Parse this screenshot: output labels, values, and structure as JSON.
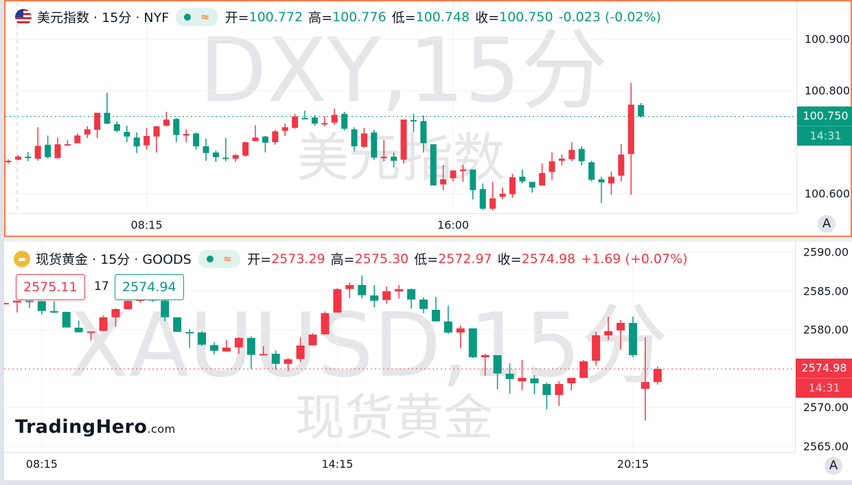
{
  "colors": {
    "up": "#f23645",
    "down": "#089981",
    "active_border": "#ff7a45"
  },
  "panes": [
    {
      "symbol_title": "美元指数 · 15分 · NYF",
      "icon": "us-flag-icon",
      "watermark_main": "DXY,15分",
      "watermark_sub": "美元指数",
      "ohlc": {
        "open_label": "开=",
        "open": "100.772",
        "high_label": "高=",
        "high": "100.776",
        "low_label": "低=",
        "low": "100.748",
        "close_label": "收=",
        "close": "100.750",
        "change": "-0.023 (-0.02%)",
        "color": "#089981"
      },
      "last_price": "100.750",
      "countdown": "14:31",
      "price_ticks": [
        "100.900",
        "100.800",
        "100.600"
      ],
      "time_labels": [
        {
          "label": "08:15",
          "index": 14
        },
        {
          "label": "16:00",
          "index": 45
        }
      ],
      "scale_button": "A",
      "chart_data": {
        "type": "candlestick",
        "interval": "15分",
        "ylim": [
          100.555,
          100.976
        ],
        "up_color": "#f23645",
        "down_color": "#089981",
        "ohlc": [
          [
            100.662,
            100.667,
            100.658,
            100.664
          ],
          [
            100.666,
            100.675,
            100.665,
            100.672
          ],
          [
            100.672,
            100.681,
            100.663,
            100.671
          ],
          [
            100.668,
            100.729,
            100.664,
            100.693
          ],
          [
            100.695,
            100.713,
            100.668,
            100.671
          ],
          [
            100.669,
            100.709,
            100.668,
            100.696
          ],
          [
            100.694,
            100.704,
            100.694,
            100.696
          ],
          [
            100.698,
            100.717,
            100.698,
            100.713
          ],
          [
            100.715,
            100.731,
            100.708,
            100.725
          ],
          [
            100.724,
            100.757,
            100.708,
            100.757
          ],
          [
            100.757,
            100.796,
            100.735,
            100.736
          ],
          [
            100.735,
            100.74,
            100.72,
            100.722
          ],
          [
            100.72,
            100.732,
            100.7,
            100.711
          ],
          [
            100.709,
            100.719,
            100.679,
            100.692
          ],
          [
            100.694,
            100.728,
            100.686,
            100.712
          ],
          [
            100.711,
            100.731,
            100.68,
            100.731
          ],
          [
            100.732,
            100.759,
            100.731,
            100.744
          ],
          [
            100.745,
            100.747,
            100.7,
            100.714
          ],
          [
            100.713,
            100.725,
            100.7,
            100.716
          ],
          [
            100.717,
            100.719,
            100.686,
            100.692
          ],
          [
            100.692,
            100.707,
            100.664,
            100.679
          ],
          [
            100.68,
            100.684,
            100.662,
            100.671
          ],
          [
            100.67,
            100.708,
            100.663,
            100.669
          ],
          [
            100.668,
            100.677,
            100.662,
            100.675
          ],
          [
            100.674,
            100.701,
            100.672,
            100.7
          ],
          [
            100.702,
            100.733,
            100.702,
            100.709
          ],
          [
            100.711,
            100.712,
            100.68,
            100.699
          ],
          [
            100.7,
            100.724,
            100.695,
            100.721
          ],
          [
            100.722,
            100.736,
            100.712,
            100.729
          ],
          [
            100.728,
            100.755,
            100.726,
            100.75
          ],
          [
            100.747,
            100.761,
            100.745,
            100.746
          ],
          [
            100.748,
            100.753,
            100.732,
            100.736
          ],
          [
            100.735,
            100.75,
            100.731,
            100.737
          ],
          [
            100.738,
            100.765,
            100.734,
            100.753
          ],
          [
            100.755,
            100.759,
            100.723,
            100.726
          ],
          [
            100.725,
            100.729,
            100.682,
            100.692
          ],
          [
            100.691,
            100.728,
            100.689,
            100.717
          ],
          [
            100.719,
            100.724,
            100.666,
            100.67
          ],
          [
            100.669,
            100.704,
            100.663,
            100.672
          ],
          [
            100.672,
            100.68,
            100.651,
            100.664
          ],
          [
            100.666,
            100.744,
            100.659,
            100.744
          ],
          [
            100.743,
            100.755,
            100.72,
            100.741
          ],
          [
            100.741,
            100.752,
            100.68,
            100.698
          ],
          [
            100.696,
            100.696,
            100.616,
            100.616
          ],
          [
            100.618,
            100.656,
            100.607,
            100.628
          ],
          [
            100.63,
            100.645,
            100.624,
            100.645
          ],
          [
            100.644,
            100.656,
            100.623,
            100.647
          ],
          [
            100.647,
            100.647,
            100.589,
            100.607
          ],
          [
            100.609,
            100.62,
            100.56,
            100.571
          ],
          [
            100.571,
            100.623,
            100.565,
            100.591
          ],
          [
            100.594,
            100.612,
            100.589,
            100.6
          ],
          [
            100.599,
            100.639,
            100.592,
            100.632
          ],
          [
            100.633,
            100.647,
            100.62,
            100.624
          ],
          [
            100.623,
            100.623,
            100.602,
            100.612
          ],
          [
            100.616,
            100.659,
            100.616,
            100.64
          ],
          [
            100.642,
            100.68,
            100.627,
            100.663
          ],
          [
            100.664,
            100.676,
            100.655,
            100.668
          ],
          [
            100.667,
            100.7,
            100.663,
            100.685
          ],
          [
            100.687,
            100.692,
            100.655,
            100.663
          ],
          [
            100.661,
            100.664,
            100.624,
            100.627
          ],
          [
            100.628,
            100.633,
            100.582,
            100.622
          ],
          [
            100.62,
            100.643,
            100.598,
            100.633
          ],
          [
            100.635,
            100.696,
            100.624,
            100.676
          ],
          [
            100.677,
            100.815,
            100.598,
            100.773
          ],
          [
            100.772,
            100.776,
            100.748,
            100.75
          ]
        ]
      }
    },
    {
      "symbol_title": "现货黄金 · 15分 · GOODS",
      "icon": "gold-bars-icon",
      "watermark_main": "XAUUSD,15分",
      "watermark_sub": "现货黄金",
      "ohlc": {
        "open_label": "开=",
        "open": "2573.29",
        "high_label": "高=",
        "high": "2575.30",
        "low_label": "低=",
        "low": "2572.97",
        "close_label": "收=",
        "close": "2574.98",
        "change": "+1.69 (+0.07%)",
        "color": "#f23645"
      },
      "bid": "2575.11",
      "spread": "17",
      "ask": "2574.94",
      "last_price": "2574.98",
      "countdown": "14:31",
      "price_ticks": [
        "2590.00",
        "2585.00",
        "2580.00",
        "2570.00",
        "2565.00"
      ],
      "time_labels": [
        {
          "label": "08:15",
          "index": 3
        },
        {
          "label": "14:15",
          "index": 27
        },
        {
          "label": "20:15",
          "index": 51
        }
      ],
      "scale_button": "A",
      "chart_data": {
        "type": "candlestick",
        "interval": "15分",
        "ylim": [
          2563.0,
          2590.0
        ],
        "up_color": "#f23645",
        "down_color": "#089981",
        "ohlc": [
          [
            2583.35,
            2583.5,
            2583.3,
            2583.45
          ],
          [
            2583.52,
            2583.75,
            2582.23,
            2583.75
          ],
          [
            2583.75,
            2583.75,
            2582.82,
            2583.7
          ],
          [
            2583.7,
            2583.75,
            2581.99,
            2582.43
          ],
          [
            2582.4,
            2583.7,
            2582.14,
            2582.34
          ],
          [
            2582.31,
            2582.35,
            2580.28,
            2580.31
          ],
          [
            2580.28,
            2581.19,
            2579.69,
            2579.69
          ],
          [
            2579.75,
            2579.8,
            2578.63,
            2579.8
          ],
          [
            2579.87,
            2581.87,
            2579.85,
            2581.61
          ],
          [
            2581.63,
            2582.76,
            2580.4,
            2582.67
          ],
          [
            2582.67,
            2583.99,
            2582.6,
            2583.73
          ],
          [
            2583.73,
            2584.5,
            2583.5,
            2584.1
          ],
          [
            2584.2,
            2584.4,
            2583.6,
            2583.78
          ],
          [
            2583.76,
            2583.9,
            2581.1,
            2581.63
          ],
          [
            2581.61,
            2581.61,
            2579.72,
            2579.75
          ],
          [
            2579.72,
            2580.08,
            2577.66,
            2579.69
          ],
          [
            2579.66,
            2579.81,
            2577.92,
            2578.1
          ],
          [
            2578.05,
            2578.4,
            2576.86,
            2577.31
          ],
          [
            2577.22,
            2578.69,
            2577.2,
            2577.72
          ],
          [
            2577.75,
            2579.05,
            2576.93,
            2578.96
          ],
          [
            2578.96,
            2579.16,
            2575.01,
            2576.78
          ],
          [
            2576.83,
            2577.9,
            2576.8,
            2576.9
          ],
          [
            2576.93,
            2577.34,
            2574.92,
            2575.63
          ],
          [
            2575.63,
            2576.4,
            2574.69,
            2576.22
          ],
          [
            2576.25,
            2579.02,
            2575.89,
            2577.99
          ],
          [
            2578.01,
            2579.58,
            2578.0,
            2579.4
          ],
          [
            2579.43,
            2582.38,
            2579.4,
            2582.14
          ],
          [
            2582.23,
            2585.41,
            2582.2,
            2585.23
          ],
          [
            2585.26,
            2586.11,
            2584.08,
            2585.76
          ],
          [
            2585.76,
            2586.99,
            2584.08,
            2584.46
          ],
          [
            2584.43,
            2585.76,
            2582.93,
            2583.75
          ],
          [
            2583.84,
            2585.58,
            2583.37,
            2584.96
          ],
          [
            2584.96,
            2585.76,
            2583.99,
            2585.23
          ],
          [
            2585.23,
            2585.32,
            2582.76,
            2583.9
          ],
          [
            2583.9,
            2584.17,
            2582.14,
            2582.69
          ],
          [
            2582.58,
            2584.26,
            2581.1,
            2581.1
          ],
          [
            2581.08,
            2583.11,
            2579.49,
            2579.66
          ],
          [
            2579.66,
            2580.55,
            2577.63,
            2580.19
          ],
          [
            2580.19,
            2580.19,
            2576.4,
            2576.48
          ],
          [
            2576.48,
            2576.93,
            2574.1,
            2576.75
          ],
          [
            2576.75,
            2576.75,
            2572.33,
            2574.39
          ],
          [
            2574.36,
            2575.69,
            2571.8,
            2573.68
          ],
          [
            2573.39,
            2576.13,
            2572.24,
            2573.83
          ],
          [
            2573.75,
            2574.19,
            2571.71,
            2573.13
          ],
          [
            2573.04,
            2573.22,
            2569.78,
            2571.63
          ],
          [
            2571.63,
            2573.39,
            2570.22,
            2573.04
          ],
          [
            2573.13,
            2573.83,
            2572.24,
            2573.83
          ],
          [
            2573.83,
            2576.13,
            2573.75,
            2575.95
          ],
          [
            2576.04,
            2579.75,
            2575.42,
            2579.31
          ],
          [
            2579.31,
            2581.7,
            2578.69,
            2579.84
          ],
          [
            2579.93,
            2581.25,
            2577.46,
            2580.9
          ],
          [
            2580.9,
            2581.7,
            2576.48,
            2576.75
          ],
          [
            2572.42,
            2579.05,
            2568.36,
            2573.3
          ],
          [
            2573.29,
            2575.3,
            2572.97,
            2574.98
          ]
        ]
      }
    }
  ],
  "logo": {
    "brand": "TradingHero",
    "suffix": ".com"
  }
}
